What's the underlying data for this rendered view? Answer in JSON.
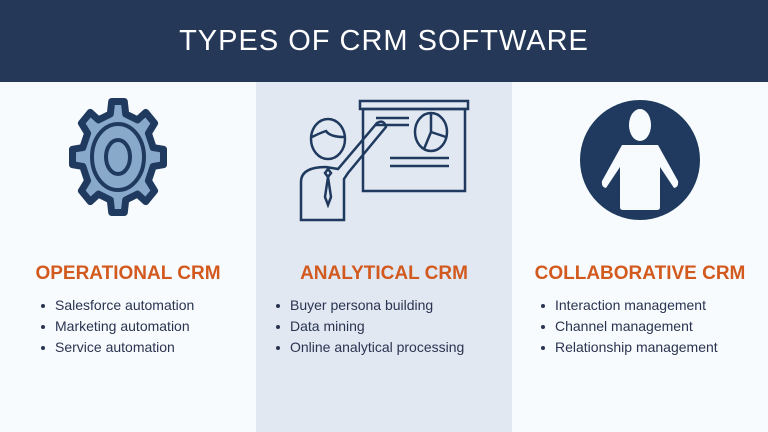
{
  "header": {
    "title": "TYPES OF CRM SOFTWARE"
  },
  "colors": {
    "header_bg": "#263858",
    "accent": "#d35a1f",
    "icon": "#1f3a5e",
    "gear_fill": "#88a9c9"
  },
  "columns": [
    {
      "icon": "gear-icon",
      "title": "OPERATIONAL CRM",
      "items": [
        "Salesforce automation",
        "Marketing automation",
        "Service automation"
      ]
    },
    {
      "icon": "presenter-icon",
      "title": "ANALYTICAL CRM",
      "items": [
        "Buyer persona building",
        "Data mining",
        "Online analytical processing"
      ]
    },
    {
      "icon": "person-icon",
      "title": "COLLABORATIVE CRM",
      "items": [
        "Interaction management",
        "Channel management",
        "Relationship management"
      ]
    }
  ]
}
